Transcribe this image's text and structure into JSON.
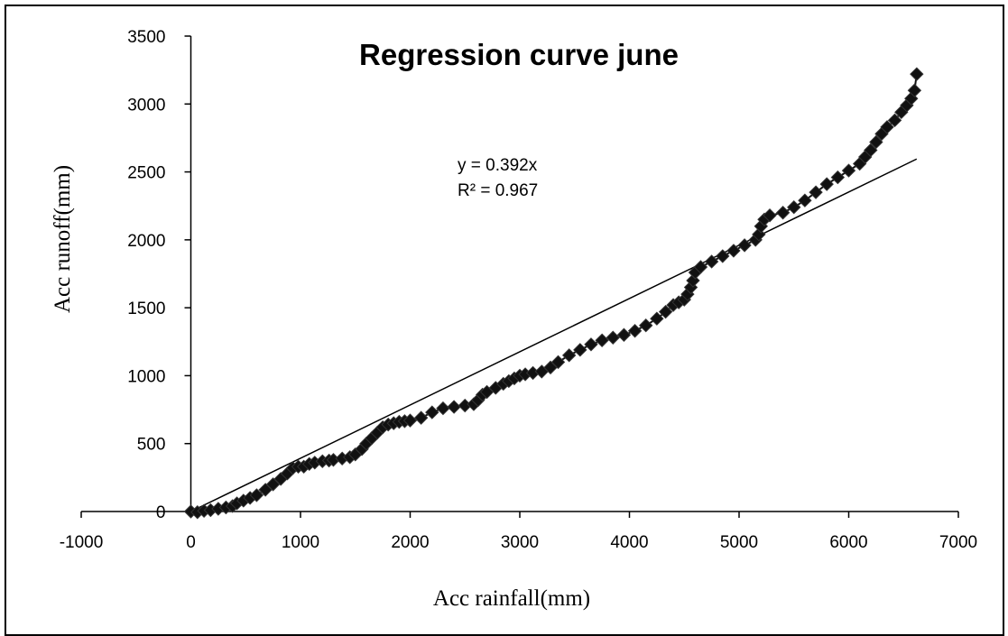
{
  "chart_data": {
    "type": "scatter",
    "title": "Regression curve june",
    "xlabel": "Acc rainfall(mm)",
    "ylabel": "Acc runoff(mm)",
    "xlim": [
      -1000,
      7000
    ],
    "ylim": [
      0,
      3500
    ],
    "x_ticks": [
      "-1000",
      "0",
      "1000",
      "2000",
      "3000",
      "4000",
      "5000",
      "6000",
      "7000"
    ],
    "y_ticks": [
      "0",
      "500",
      "1000",
      "1500",
      "2000",
      "2500",
      "3000",
      "3500"
    ],
    "grid": false,
    "legend": "none",
    "colors": {
      "points": "#111111",
      "trendline": "#000000"
    },
    "trendline": {
      "type": "linear-through-origin",
      "slope": 0.392,
      "equation": "y = 0.392x",
      "r_squared": "R² = 0.967",
      "x_range": [
        0,
        6620
      ]
    },
    "series": [
      {
        "values": [
          [
            0,
            0
          ],
          [
            60,
            -5
          ],
          [
            120,
            5
          ],
          [
            180,
            10
          ],
          [
            250,
            20
          ],
          [
            320,
            30
          ],
          [
            380,
            40
          ],
          [
            420,
            60
          ],
          [
            480,
            80
          ],
          [
            540,
            100
          ],
          [
            600,
            120
          ],
          [
            680,
            160
          ],
          [
            750,
            200
          ],
          [
            820,
            240
          ],
          [
            880,
            280
          ],
          [
            930,
            320
          ],
          [
            980,
            330
          ],
          [
            1030,
            330
          ],
          [
            1080,
            350
          ],
          [
            1130,
            360
          ],
          [
            1200,
            370
          ],
          [
            1260,
            375
          ],
          [
            1300,
            380
          ],
          [
            1380,
            390
          ],
          [
            1450,
            400
          ],
          [
            1500,
            420
          ],
          [
            1560,
            460
          ],
          [
            1600,
            500
          ],
          [
            1650,
            540
          ],
          [
            1700,
            580
          ],
          [
            1750,
            620
          ],
          [
            1800,
            640
          ],
          [
            1850,
            650
          ],
          [
            1900,
            660
          ],
          [
            1950,
            665
          ],
          [
            2000,
            670
          ],
          [
            2100,
            690
          ],
          [
            2200,
            730
          ],
          [
            2300,
            760
          ],
          [
            2400,
            770
          ],
          [
            2500,
            780
          ],
          [
            2580,
            790
          ],
          [
            2620,
            820
          ],
          [
            2660,
            860
          ],
          [
            2700,
            880
          ],
          [
            2780,
            910
          ],
          [
            2850,
            940
          ],
          [
            2900,
            960
          ],
          [
            2950,
            980
          ],
          [
            3000,
            1000
          ],
          [
            3050,
            1010
          ],
          [
            3120,
            1020
          ],
          [
            3200,
            1030
          ],
          [
            3280,
            1060
          ],
          [
            3350,
            1100
          ],
          [
            3450,
            1150
          ],
          [
            3550,
            1190
          ],
          [
            3650,
            1230
          ],
          [
            3750,
            1260
          ],
          [
            3850,
            1280
          ],
          [
            3950,
            1300
          ],
          [
            4050,
            1330
          ],
          [
            4150,
            1370
          ],
          [
            4250,
            1420
          ],
          [
            4330,
            1470
          ],
          [
            4400,
            1520
          ],
          [
            4450,
            1540
          ],
          [
            4500,
            1560
          ],
          [
            4530,
            1600
          ],
          [
            4560,
            1650
          ],
          [
            4580,
            1700
          ],
          [
            4600,
            1760
          ],
          [
            4650,
            1800
          ],
          [
            4750,
            1840
          ],
          [
            4850,
            1880
          ],
          [
            4950,
            1920
          ],
          [
            5050,
            1960
          ],
          [
            5150,
            2000
          ],
          [
            5180,
            2040
          ],
          [
            5200,
            2100
          ],
          [
            5230,
            2150
          ],
          [
            5280,
            2180
          ],
          [
            5400,
            2200
          ],
          [
            5500,
            2240
          ],
          [
            5600,
            2290
          ],
          [
            5700,
            2350
          ],
          [
            5800,
            2410
          ],
          [
            5900,
            2460
          ],
          [
            6000,
            2510
          ],
          [
            6100,
            2560
          ],
          [
            6150,
            2610
          ],
          [
            6200,
            2660
          ],
          [
            6250,
            2720
          ],
          [
            6300,
            2780
          ],
          [
            6350,
            2830
          ],
          [
            6420,
            2880
          ],
          [
            6480,
            2940
          ],
          [
            6530,
            2990
          ],
          [
            6570,
            3040
          ],
          [
            6600,
            3100
          ],
          [
            6620,
            3220
          ]
        ]
      }
    ]
  }
}
